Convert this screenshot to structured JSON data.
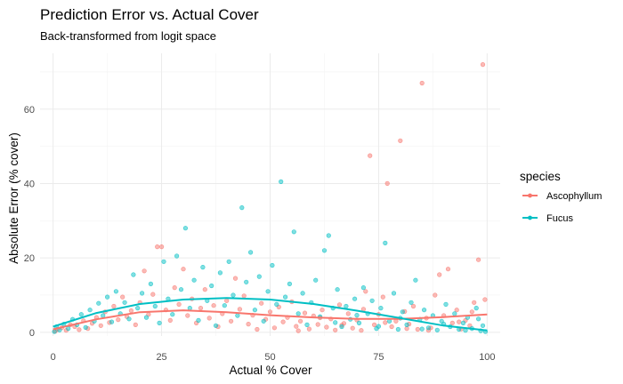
{
  "chart_data": {
    "type": "scatter",
    "title": "Prediction Error vs. Actual Cover",
    "subtitle": "Back-transformed from logit space",
    "xlabel": "Actual % Cover",
    "ylabel": "Absolute Error (% cover)",
    "xlim": [
      -3,
      103
    ],
    "ylim": [
      -1,
      75
    ],
    "x_ticks": [
      0,
      25,
      50,
      75,
      100
    ],
    "y_ticks": [
      0,
      20,
      40,
      60
    ],
    "grid": true,
    "legend": {
      "title": "species",
      "position": "right"
    },
    "series": [
      {
        "name": "Ascophyllum",
        "color": "#F8766D",
        "points": [
          [
            0.5,
            0.3
          ],
          [
            1,
            0.8
          ],
          [
            2,
            1.2
          ],
          [
            3,
            0.5
          ],
          [
            4,
            2.0
          ],
          [
            5,
            1.5
          ],
          [
            6,
            0.7
          ],
          [
            7,
            3.1
          ],
          [
            8,
            1.0
          ],
          [
            9,
            2.4
          ],
          [
            10,
            4.0
          ],
          [
            11,
            1.8
          ],
          [
            12,
            5.5
          ],
          [
            13,
            2.6
          ],
          [
            14,
            7.0
          ],
          [
            15,
            3.4
          ],
          [
            16,
            9.5
          ],
          [
            17,
            4.2
          ],
          [
            18,
            5.8
          ],
          [
            19,
            2.0
          ],
          [
            20,
            8.0
          ],
          [
            21,
            16.5
          ],
          [
            22,
            4.8
          ],
          [
            23,
            10.2
          ],
          [
            24,
            23.0
          ],
          [
            25,
            23.0
          ],
          [
            26,
            6.0
          ],
          [
            27,
            3.2
          ],
          [
            28,
            12.0
          ],
          [
            29,
            7.5
          ],
          [
            30,
            17.0
          ],
          [
            31,
            4.5
          ],
          [
            32,
            9.0
          ],
          [
            33,
            2.5
          ],
          [
            34,
            6.5
          ],
          [
            35,
            11.5
          ],
          [
            36,
            3.8
          ],
          [
            37,
            7.2
          ],
          [
            38,
            1.5
          ],
          [
            39,
            5.0
          ],
          [
            40,
            8.5
          ],
          [
            41,
            3.0
          ],
          [
            42,
            14.5
          ],
          [
            43,
            6.2
          ],
          [
            44,
            9.8
          ],
          [
            45,
            2.2
          ],
          [
            46,
            4.6
          ],
          [
            47,
            0.8
          ],
          [
            48,
            7.8
          ],
          [
            49,
            3.5
          ],
          [
            50,
            5.5
          ],
          [
            51,
            1.2
          ],
          [
            52,
            6.8
          ],
          [
            53,
            2.8
          ],
          [
            54,
            4.0
          ],
          [
            55,
            8.2
          ],
          [
            56,
            1.6
          ],
          [
            57,
            3.0
          ],
          [
            58,
            5.2
          ],
          [
            59,
            0.9
          ],
          [
            60,
            4.4
          ],
          [
            61,
            2.1
          ],
          [
            62,
            6.0
          ],
          [
            63,
            1.4
          ],
          [
            64,
            3.6
          ],
          [
            65,
            0.6
          ],
          [
            66,
            7.4
          ],
          [
            67,
            2.4
          ],
          [
            68,
            5.0
          ],
          [
            69,
            1.1
          ],
          [
            70,
            3.3
          ],
          [
            71,
            0.5
          ],
          [
            72,
            11.0
          ],
          [
            73,
            47.5
          ],
          [
            74,
            2.0
          ],
          [
            75,
            4.8
          ],
          [
            76,
            9.5
          ],
          [
            77,
            40.0
          ],
          [
            78,
            1.5
          ],
          [
            79,
            3.0
          ],
          [
            80,
            51.5
          ],
          [
            81,
            5.6
          ],
          [
            82,
            2.2
          ],
          [
            83,
            7.0
          ],
          [
            84,
            0.8
          ],
          [
            85,
            67.0
          ],
          [
            86,
            3.8
          ],
          [
            87,
            1.2
          ],
          [
            88,
            10.0
          ],
          [
            89,
            15.5
          ],
          [
            90,
            4.5
          ],
          [
            91,
            17.0
          ],
          [
            92,
            2.5
          ],
          [
            93,
            6.0
          ],
          [
            94,
            0.9
          ],
          [
            95,
            3.2
          ],
          [
            96,
            1.8
          ],
          [
            97,
            8.0
          ],
          [
            98,
            19.5
          ],
          [
            99,
            72.0
          ],
          [
            99.5,
            8.8
          ],
          [
            96.5,
            5.5
          ],
          [
            93.5,
            2.8
          ],
          [
            86.5,
            0.5
          ],
          [
            81.5,
            1.0
          ],
          [
            76.5,
            2.6
          ],
          [
            71.5,
            6.2
          ],
          [
            66.5,
            1.9
          ],
          [
            61.5,
            3.9
          ],
          [
            56.5,
            0.4
          ]
        ]
      },
      {
        "name": "Fucus",
        "color": "#00BFC4",
        "points": [
          [
            0.3,
            0.2
          ],
          [
            0.8,
            1.5
          ],
          [
            1.5,
            0.6
          ],
          [
            2.5,
            2.2
          ],
          [
            3.5,
            1.0
          ],
          [
            4.5,
            3.5
          ],
          [
            5.5,
            2.0
          ],
          [
            6.5,
            4.8
          ],
          [
            7.5,
            1.3
          ],
          [
            8.5,
            6.0
          ],
          [
            9.5,
            3.0
          ],
          [
            10.5,
            7.8
          ],
          [
            11.5,
            4.5
          ],
          [
            12.5,
            9.5
          ],
          [
            13.5,
            2.8
          ],
          [
            14.5,
            11.0
          ],
          [
            15.5,
            5.0
          ],
          [
            16.5,
            8.0
          ],
          [
            17.5,
            3.6
          ],
          [
            18.5,
            15.5
          ],
          [
            19.5,
            6.5
          ],
          [
            20.5,
            10.5
          ],
          [
            21.5,
            4.0
          ],
          [
            22.5,
            13.0
          ],
          [
            23.5,
            7.0
          ],
          [
            24.5,
            2.5
          ],
          [
            25.5,
            19.0
          ],
          [
            26.5,
            9.0
          ],
          [
            27.5,
            4.8
          ],
          [
            28.5,
            20.5
          ],
          [
            29.5,
            11.5
          ],
          [
            30.5,
            28.0
          ],
          [
            31.5,
            6.5
          ],
          [
            32.5,
            14.0
          ],
          [
            33.5,
            3.2
          ],
          [
            34.5,
            17.5
          ],
          [
            35.5,
            8.5
          ],
          [
            36.5,
            12.5
          ],
          [
            37.5,
            1.8
          ],
          [
            38.5,
            16.0
          ],
          [
            39.5,
            7.2
          ],
          [
            40.5,
            19.0
          ],
          [
            41.5,
            10.0
          ],
          [
            42.5,
            4.5
          ],
          [
            43.5,
            33.5
          ],
          [
            44.5,
            13.5
          ],
          [
            45.5,
            21.5
          ],
          [
            46.5,
            6.0
          ],
          [
            47.5,
            15.0
          ],
          [
            48.5,
            3.0
          ],
          [
            49.5,
            11.0
          ],
          [
            50.5,
            18.0
          ],
          [
            51.5,
            7.5
          ],
          [
            52.5,
            40.5
          ],
          [
            53.5,
            9.5
          ],
          [
            54.5,
            13.0
          ],
          [
            55.5,
            27.0
          ],
          [
            56.5,
            5.0
          ],
          [
            57.5,
            10.5
          ],
          [
            58.5,
            2.0
          ],
          [
            59.5,
            8.0
          ],
          [
            60.5,
            14.0
          ],
          [
            61.5,
            4.2
          ],
          [
            62.5,
            22.0
          ],
          [
            63.5,
            26.0
          ],
          [
            64.5,
            6.5
          ],
          [
            65.5,
            11.5
          ],
          [
            66.5,
            1.5
          ],
          [
            67.5,
            7.0
          ],
          [
            68.5,
            3.5
          ],
          [
            69.5,
            9.0
          ],
          [
            70.5,
            2.5
          ],
          [
            71.5,
            12.0
          ],
          [
            72.5,
            5.0
          ],
          [
            73.5,
            8.5
          ],
          [
            74.5,
            1.0
          ],
          [
            75.5,
            6.5
          ],
          [
            76.5,
            24.0
          ],
          [
            77.5,
            3.0
          ],
          [
            78.5,
            10.5
          ],
          [
            79.5,
            0.8
          ],
          [
            80.5,
            5.5
          ],
          [
            81.5,
            2.0
          ],
          [
            82.5,
            8.0
          ],
          [
            83.5,
            14.0
          ],
          [
            84.5,
            3.5
          ],
          [
            85.5,
            6.0
          ],
          [
            86.5,
            1.2
          ],
          [
            87.5,
            4.5
          ],
          [
            88.5,
            0.6
          ],
          [
            89.5,
            3.0
          ],
          [
            90.5,
            7.5
          ],
          [
            91.5,
            1.5
          ],
          [
            92.5,
            5.0
          ],
          [
            93.5,
            0.8
          ],
          [
            94.5,
            2.5
          ],
          [
            95.5,
            4.0
          ],
          [
            96.5,
            1.0
          ],
          [
            97.5,
            6.5
          ],
          [
            98.5,
            0.4
          ],
          [
            99.0,
            1.8
          ],
          [
            99.6,
            0.2
          ],
          [
            98.0,
            3.6
          ],
          [
            95.0,
            0.5
          ],
          [
            90.0,
            2.2
          ],
          [
            85.0,
            0.9
          ],
          [
            80.0,
            3.8
          ],
          [
            75.0,
            1.6
          ],
          [
            70.0,
            4.6
          ],
          [
            65.0,
            2.6
          ]
        ]
      }
    ],
    "trend_lines": [
      {
        "name": "Ascophyllum",
        "color": "#F8766D",
        "points": [
          [
            0,
            0.8
          ],
          [
            10,
            3.5
          ],
          [
            20,
            5.4
          ],
          [
            30,
            5.9
          ],
          [
            40,
            5.4
          ],
          [
            50,
            4.6
          ],
          [
            60,
            4.0
          ],
          [
            70,
            3.6
          ],
          [
            80,
            3.6
          ],
          [
            90,
            4.1
          ],
          [
            100,
            4.8
          ]
        ]
      },
      {
        "name": "Fucus",
        "color": "#00BFC4",
        "points": [
          [
            0,
            1.5
          ],
          [
            10,
            5.2
          ],
          [
            20,
            7.6
          ],
          [
            30,
            8.8
          ],
          [
            40,
            9.2
          ],
          [
            50,
            8.8
          ],
          [
            60,
            7.6
          ],
          [
            70,
            5.8
          ],
          [
            80,
            3.8
          ],
          [
            90,
            1.8
          ],
          [
            100,
            0.5
          ]
        ]
      }
    ]
  }
}
